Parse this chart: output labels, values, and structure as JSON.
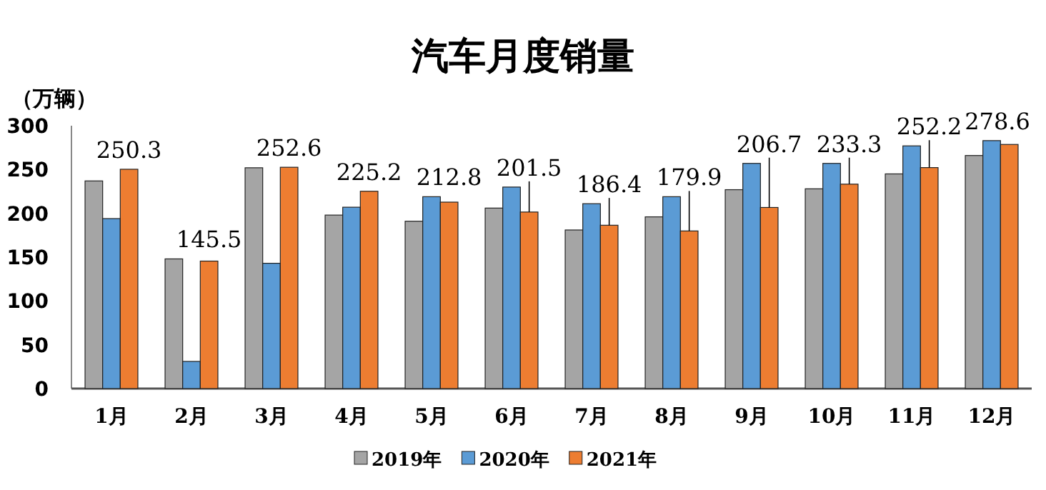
{
  "chart_data": {
    "type": "bar",
    "title": "汽车月度销量",
    "ylabel": "（万辆）",
    "categories": [
      "1月",
      "2月",
      "3月",
      "4月",
      "5月",
      "6月",
      "7月",
      "8月",
      "9月",
      "10月",
      "11月",
      "12月"
    ],
    "series": [
      {
        "name": "2019年",
        "color": "#a5a5a5",
        "values": [
          237,
          148,
          252,
          198,
          191,
          206,
          181,
          196,
          227,
          228,
          245,
          266
        ]
      },
      {
        "name": "2020年",
        "color": "#5b9bd5",
        "values": [
          194,
          31,
          143,
          207,
          219,
          230,
          211,
          219,
          257,
          257,
          277,
          283
        ]
      },
      {
        "name": "2021年",
        "color": "#ed7d31",
        "values": [
          250.3,
          145.5,
          252.6,
          225.2,
          212.8,
          201.5,
          186.4,
          179.9,
          206.7,
          233.3,
          252.2,
          278.6
        ],
        "value_labels": [
          "250.3",
          "145.5",
          "252.6",
          "225.2",
          "212.8",
          "201.5",
          "186.4",
          "179.9",
          "206.7",
          "233.3",
          "252.2",
          "278.6"
        ]
      }
    ],
    "ylim": [
      0,
      300
    ],
    "yticks": [
      0,
      50,
      100,
      150,
      200,
      250,
      300
    ],
    "grid": false,
    "legend": "bottom"
  }
}
